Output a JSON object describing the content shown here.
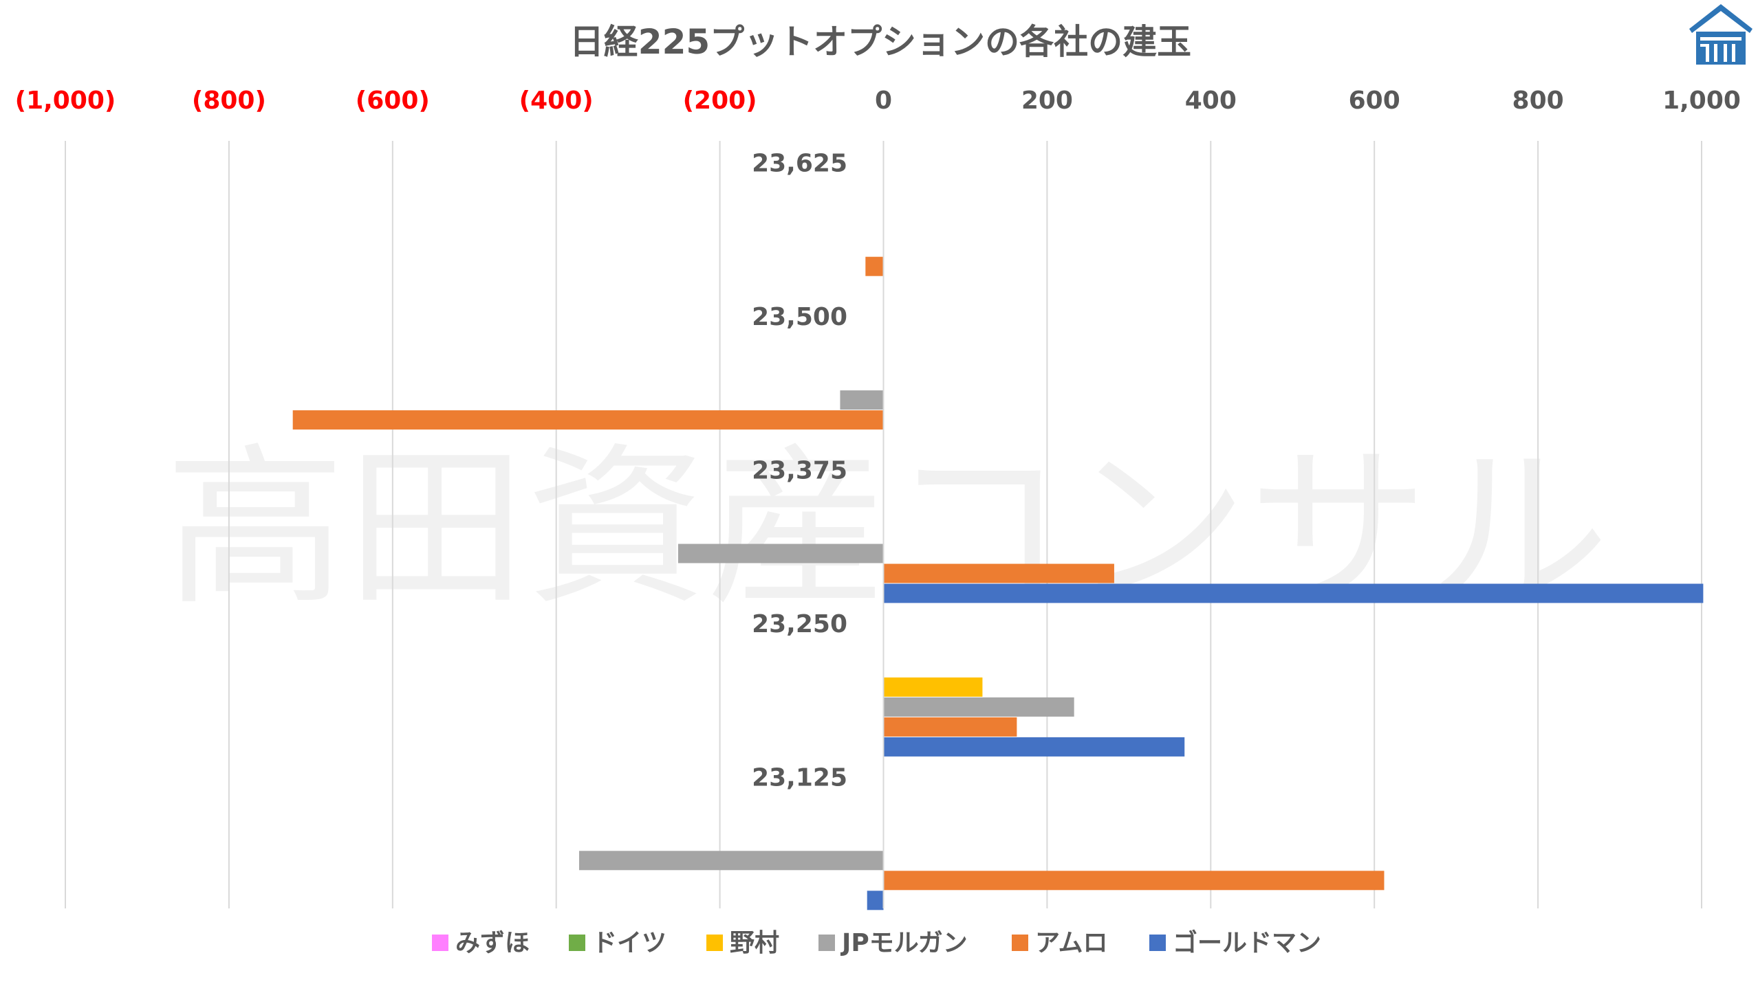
{
  "chart_data": {
    "type": "bar",
    "orientation": "horizontal",
    "title": "日経225プットオプションの各社の建玉",
    "categories": [
      "23,625",
      "23,500",
      "23,375",
      "23,250",
      "23,125"
    ],
    "series": [
      {
        "name": "みずほ",
        "color": "#FF7FFF",
        "values": [
          0,
          0,
          0,
          0,
          0
        ]
      },
      {
        "name": "ドイツ",
        "color": "#70AD47",
        "values": [
          0,
          0,
          0,
          0,
          0
        ]
      },
      {
        "name": "野村",
        "color": "#FFC000",
        "values": [
          0,
          0,
          0,
          121,
          0
        ]
      },
      {
        "name": "JPモルガン",
        "color": "#A5A5A5",
        "values": [
          0,
          -53,
          -251,
          233,
          -372
        ]
      },
      {
        "name": "アムロ",
        "color": "#ED7D31",
        "values": [
          -22,
          -722,
          282,
          163,
          612
        ]
      },
      {
        "name": "ゴールドマン",
        "color": "#4472C4",
        "values": [
          0,
          0,
          1002,
          368,
          -20
        ]
      }
    ],
    "xlim": [
      -1000,
      1000
    ],
    "x_ticks": [
      -1000,
      -800,
      -600,
      -400,
      -200,
      0,
      200,
      400,
      600,
      800,
      1000
    ],
    "x_tick_labels": [
      "(1,000)",
      "(800)",
      "(600)",
      "(400)",
      "(200)",
      "0",
      "200",
      "400",
      "600",
      "800",
      "1,000"
    ],
    "negative_tick_color": "#FF0000",
    "positive_tick_color": "#595959",
    "grid": true,
    "legend_position": "bottom"
  },
  "watermark": {
    "text": "高田資産コンサル"
  },
  "logo": {
    "name": "house-logo-icon",
    "color": "#2E75B6"
  }
}
